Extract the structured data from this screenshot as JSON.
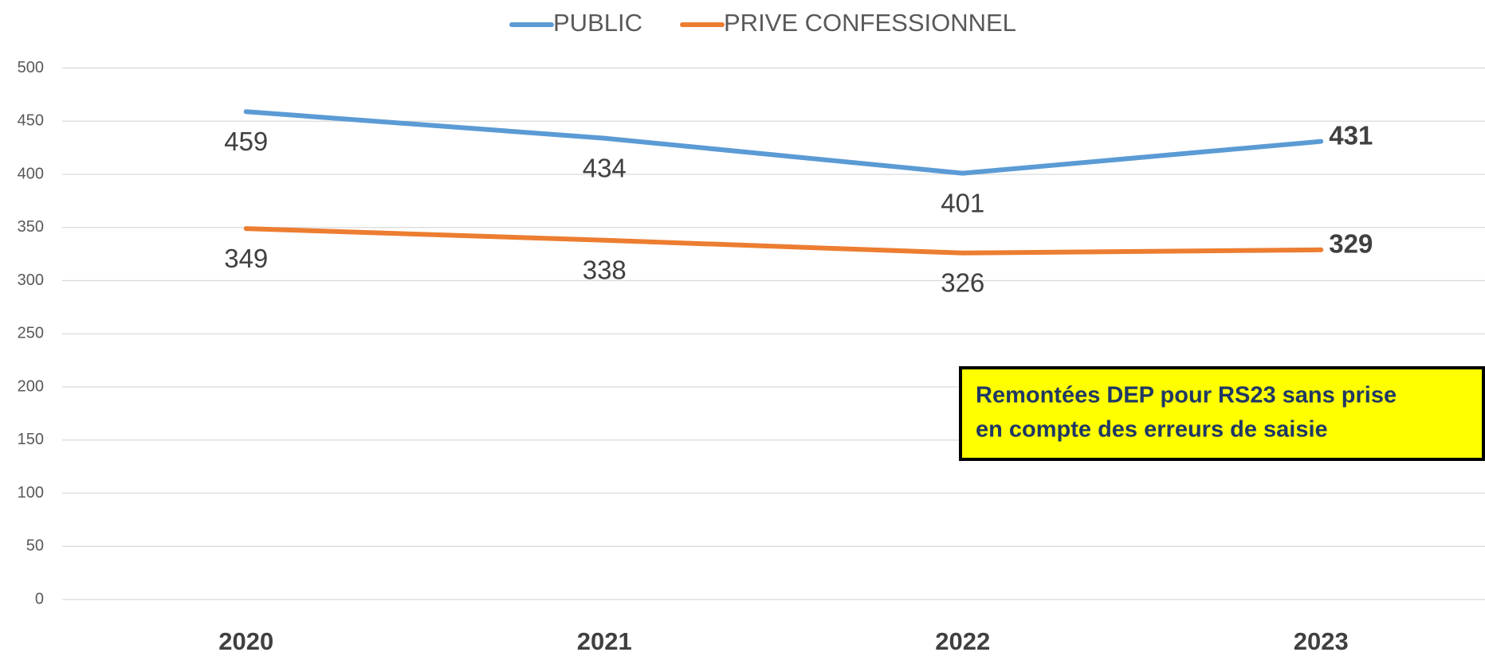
{
  "chart_data": {
    "type": "line",
    "categories": [
      "2020",
      "2021",
      "2022",
      "2023"
    ],
    "series": [
      {
        "name": "PUBLIC",
        "color": "#5b9bd5",
        "values": [
          459,
          434,
          401,
          431
        ]
      },
      {
        "name": "PRIVE CONFESSIONNEL",
        "color": "#ed7d31",
        "values": [
          349,
          338,
          326,
          329
        ]
      }
    ],
    "ylim": [
      0,
      500
    ],
    "yticks": [
      0,
      50,
      100,
      150,
      200,
      250,
      300,
      350,
      400,
      450,
      500
    ],
    "grid": true,
    "legend": "top",
    "annotation": [
      "Remontées DEP pour RS23 sans prise",
      "en compte des erreurs de saisie"
    ]
  }
}
